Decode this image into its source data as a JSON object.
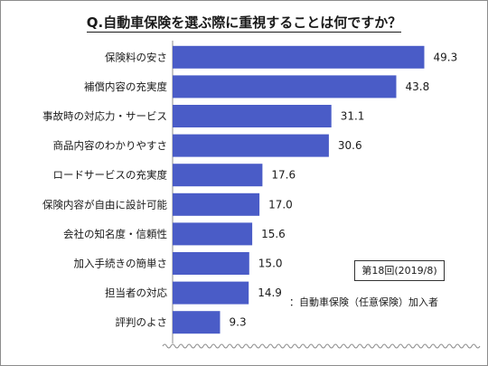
{
  "chart_data": {
    "type": "bar",
    "orientation": "horizontal",
    "title": "Q.自動車保険を選ぶ際に重視することは何ですか？",
    "categories": [
      "保険料の安さ",
      "補償内容の充実度",
      "事故時の対応力・サービス",
      "商品内容のわかりやすさ",
      "ロードサービスの充実度",
      "保険内容が自由に設計可能",
      "会社の知名度・信頼性",
      "加入手続きの簡単さ",
      "担当者の対応",
      "評判のよさ"
    ],
    "values": [
      49.3,
      43.8,
      31.1,
      30.6,
      17.6,
      17.0,
      15.6,
      15.0,
      14.9,
      9.3
    ],
    "value_labels": [
      "49.3",
      "43.8",
      "31.1",
      "30.6",
      "17.6",
      "17.0",
      "15.6",
      "15.0",
      "14.9",
      "9.3"
    ],
    "xlim": [
      0,
      60
    ],
    "grid": false,
    "bar_color": "#4a5cc7",
    "annotation_box": "第18回(2019/8)",
    "annotation_note": "：自動車保険（任意保険）加入者"
  }
}
